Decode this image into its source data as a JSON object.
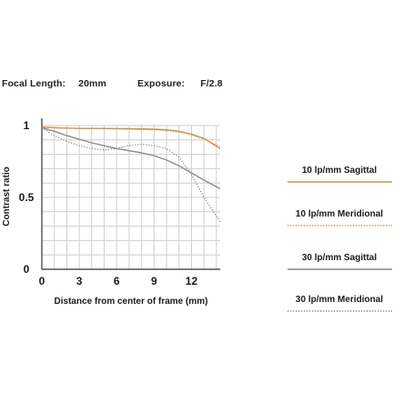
{
  "header": {
    "focal_label": "Focal Length:",
    "focal_value": "20mm",
    "exposure_label": "Exposure:",
    "exposure_value": "F/2.8"
  },
  "chart_data": {
    "type": "line",
    "xlabel": "Distance from center of frame (mm)",
    "ylabel": "Contrast ratio",
    "xlim": [
      0,
      14.3
    ],
    "ylim": [
      0,
      1
    ],
    "x_ticks": [
      0,
      3,
      6,
      9,
      12
    ],
    "y_ticks": [
      {
        "value": 0,
        "label": "0"
      },
      {
        "value": 0.5,
        "label": "0.5"
      },
      {
        "value": 1,
        "label": "1"
      }
    ],
    "grid": true,
    "legend_position": "right",
    "series": [
      {
        "name": "10 lp/mm Sagittal",
        "color": "#c9954f",
        "style": "solid",
        "x": [
          0,
          1,
          3,
          5,
          7,
          9,
          10,
          11,
          12,
          13,
          14.3
        ],
        "y": [
          0.99,
          0.985,
          0.98,
          0.98,
          0.978,
          0.975,
          0.97,
          0.96,
          0.94,
          0.91,
          0.84
        ]
      },
      {
        "name": "10 lp/mm Meridional",
        "color": "#c9954f",
        "style": "dotted",
        "x": [
          0,
          1,
          3,
          5,
          7,
          9,
          10,
          11,
          12,
          13,
          14.3
        ],
        "y": [
          0.99,
          0.985,
          0.98,
          0.978,
          0.975,
          0.97,
          0.965,
          0.955,
          0.935,
          0.905,
          0.855
        ]
      },
      {
        "name": "30 lp/mm Sagittal",
        "color": "#8c8c8c",
        "style": "solid",
        "x": [
          0,
          1,
          2,
          4,
          6,
          8,
          9,
          10,
          11,
          12,
          13,
          14.3
        ],
        "y": [
          0.985,
          0.96,
          0.93,
          0.88,
          0.84,
          0.81,
          0.79,
          0.76,
          0.72,
          0.67,
          0.62,
          0.56
        ]
      },
      {
        "name": "30 lp/mm Meridional",
        "color": "#8c8c8c",
        "style": "dotted",
        "x": [
          0,
          1,
          2,
          3,
          4,
          5,
          6,
          7,
          8,
          9,
          10,
          11,
          12,
          13,
          14.3
        ],
        "y": [
          0.985,
          0.93,
          0.89,
          0.86,
          0.84,
          0.83,
          0.84,
          0.86,
          0.87,
          0.86,
          0.84,
          0.78,
          0.66,
          0.5,
          0.33
        ]
      }
    ]
  },
  "legend": [
    {
      "label": "10 lp/mm Sagittal",
      "color": "#c9954f",
      "style": "solid"
    },
    {
      "label": "10 lp/mm Meridional",
      "color": "#c9954f",
      "style": "dotted"
    },
    {
      "label": "30 lp/mm Sagittal",
      "color": "#8c8c8c",
      "style": "solid"
    },
    {
      "label": "30 lp/mm Meridional",
      "color": "#8c8c8c",
      "style": "dotted"
    }
  ]
}
